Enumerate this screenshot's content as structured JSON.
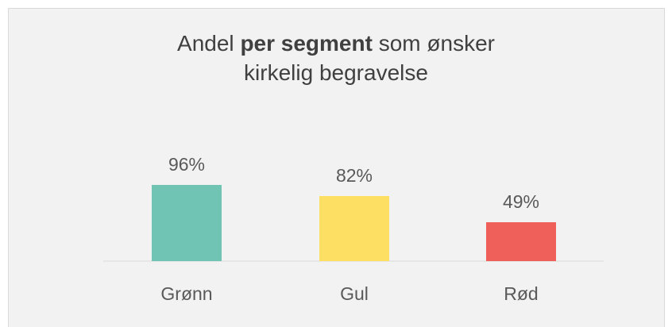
{
  "chart_data": {
    "type": "bar",
    "title": [
      "Andel",
      "per segment",
      "som ønsker kirkelig begravelse"
    ],
    "title_bold": 1,
    "categories": [
      "Grønn",
      "Gul",
      "Rød"
    ],
    "values": [
      96,
      82,
      49
    ],
    "value_labels": [
      "96%",
      "82%",
      "49%"
    ],
    "colors": [
      "#70c4b4",
      "#fddf63",
      "#f0605a"
    ]
  }
}
